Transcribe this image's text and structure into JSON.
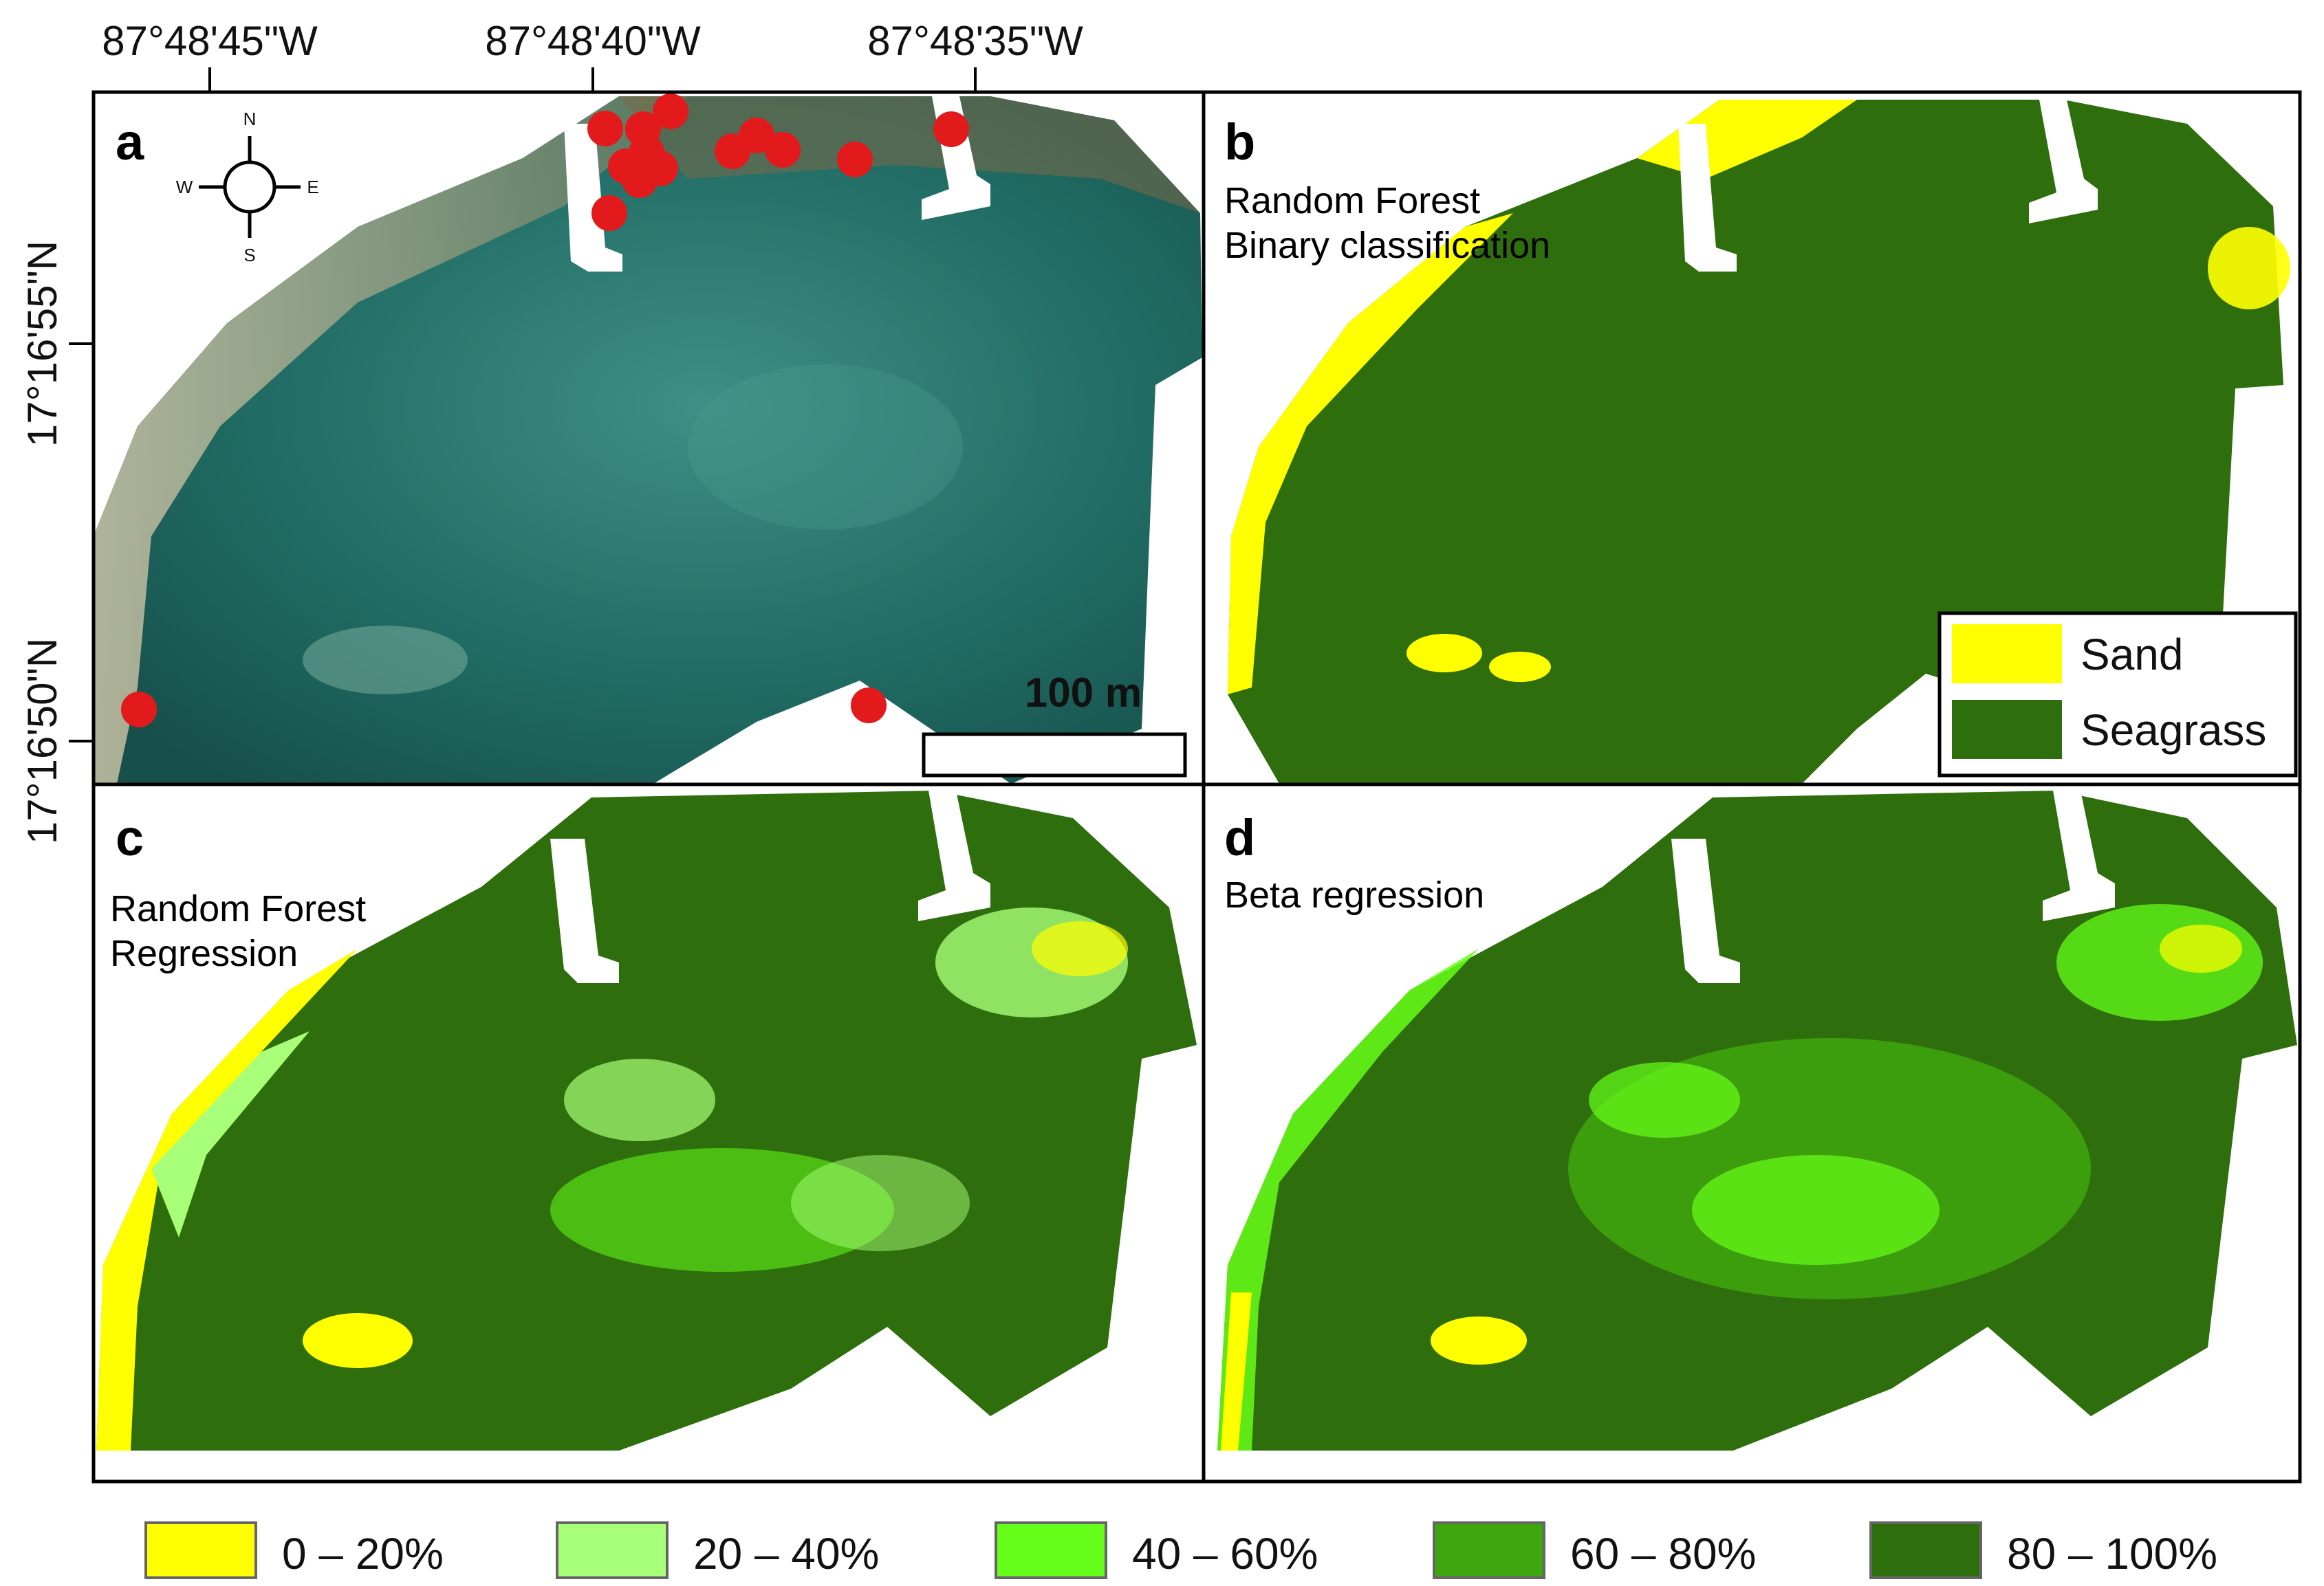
{
  "axes": {
    "top_longitudes": [
      "87°48'45\"W",
      "87°48'40\"W",
      "87°48'35\"W"
    ],
    "left_latitudes": [
      "17°16'55\"N",
      "17°16'50\"N"
    ]
  },
  "panels": {
    "a": {
      "letter": "a",
      "compass": {
        "n": "N",
        "s": "S",
        "e": "E",
        "w": "W"
      },
      "scale_label": "100 m"
    },
    "b": {
      "letter": "b",
      "title_line1": "Random Forest",
      "title_line2": "Binary classification"
    },
    "c": {
      "letter": "c",
      "title_line1": "Random Forest",
      "title_line2": "Regression"
    },
    "d": {
      "letter": "d",
      "title_line1": "Beta regression"
    }
  },
  "binary_legend": [
    {
      "label": "Sand",
      "color": "#ffff00"
    },
    {
      "label": "Seagrass",
      "color": "#2e6e0c"
    }
  ],
  "cover_legend": [
    {
      "label": "0 – 20%",
      "color": "#ffff00"
    },
    {
      "label": "20 – 40%",
      "color": "#a8ff78"
    },
    {
      "label": "40 – 60%",
      "color": "#66ff1a"
    },
    {
      "label": "60 – 80%",
      "color": "#3ea60e"
    },
    {
      "label": "80 – 100%",
      "color": "#2e6e0c"
    }
  ],
  "colors": {
    "sand": "#ffff00",
    "seagrass": "#2e6e0c",
    "points": "#e31a1c"
  }
}
